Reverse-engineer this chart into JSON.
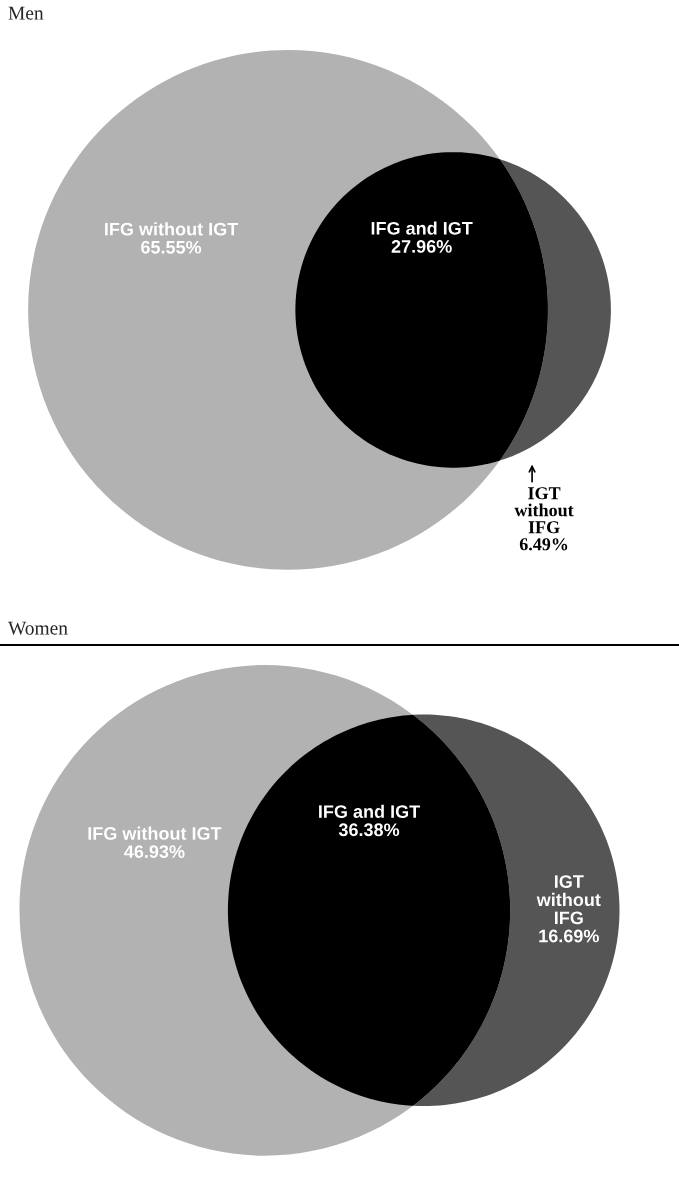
{
  "chart_data": [
    {
      "type": "other",
      "title": "Men",
      "categories": [
        "IFG without IGT",
        "IFG and IGT",
        "IGT\nwithout\nIFG"
      ],
      "values": [
        65.55,
        27.96,
        6.49
      ],
      "value_labels": [
        "65.55%",
        "27.96%",
        "6.49%"
      ],
      "colors": [
        "#b2b2b2",
        "#000000",
        "#555555"
      ]
    },
    {
      "type": "other",
      "title": "Women",
      "categories": [
        "IFG without IGT",
        "IFG and IGT",
        "IGT\nwithout\nIFG"
      ],
      "values": [
        46.93,
        36.38,
        16.69
      ],
      "value_labels": [
        "46.93%",
        "36.38%",
        "16.69%"
      ],
      "colors": [
        "#b2b2b2",
        "#000000",
        "#555555"
      ]
    }
  ]
}
